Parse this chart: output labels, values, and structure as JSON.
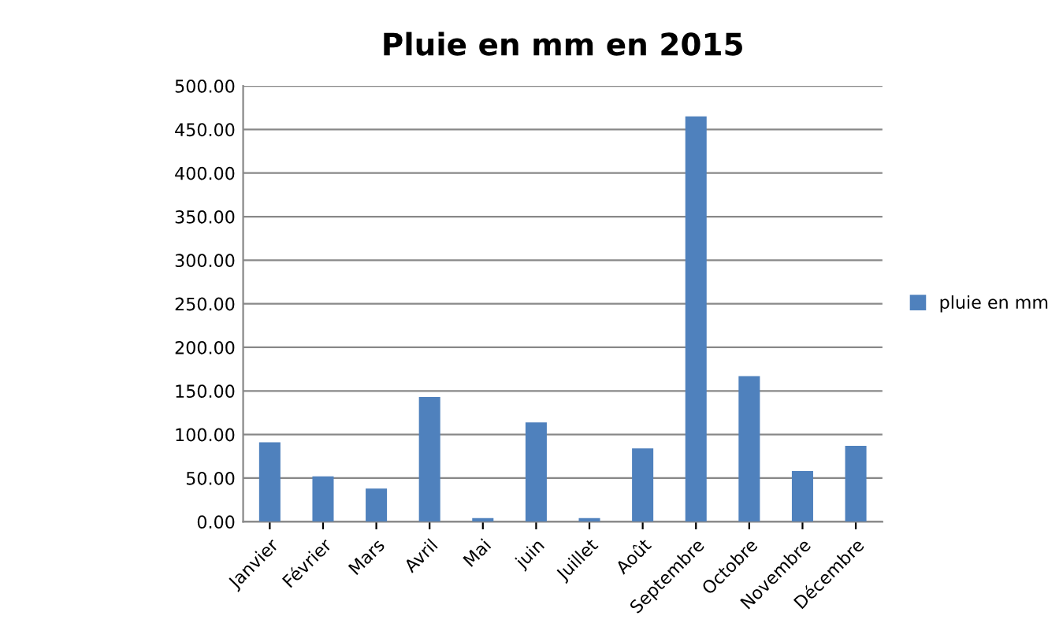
{
  "chart_data": {
    "type": "bar",
    "title": "Pluie en mm en 2015",
    "categories": [
      "Janvier",
      "Février",
      "Mars",
      "Avril",
      "Mai",
      "juin",
      "Juillet",
      "Août",
      "Septembre",
      "Octobre",
      "Novembre",
      "Décembre"
    ],
    "series": [
      {
        "name": "pluie en mm",
        "color": "#4f81bd",
        "values": [
          91,
          52,
          38,
          143,
          4,
          114,
          4,
          84,
          465,
          167,
          58,
          87
        ]
      }
    ],
    "ylim": [
      0,
      500
    ],
    "yticks": [
      {
        "value": 0,
        "label": "0.00"
      },
      {
        "value": 50,
        "label": "50.00"
      },
      {
        "value": 100,
        "label": "100.00"
      },
      {
        "value": 150,
        "label": "150.00"
      },
      {
        "value": 200,
        "label": "200.00"
      },
      {
        "value": 250,
        "label": "250.00"
      },
      {
        "value": 300,
        "label": "300.00"
      },
      {
        "value": 350,
        "label": "350.00"
      },
      {
        "value": 400,
        "label": "400.00"
      },
      {
        "value": 450,
        "label": "450.00"
      },
      {
        "value": 500,
        "label": "500.00"
      }
    ],
    "grid": "y",
    "legend": "right"
  }
}
